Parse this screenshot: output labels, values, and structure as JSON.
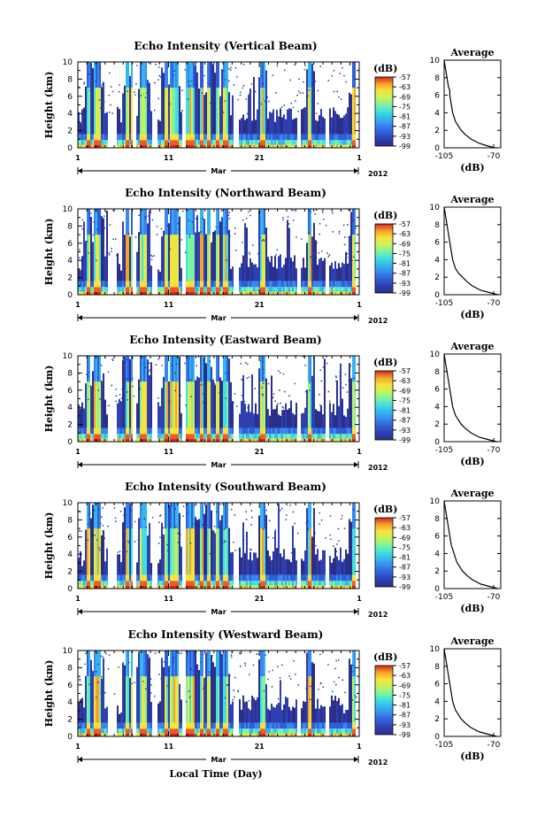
{
  "figure": {
    "xlabel": "Local Time (Day)",
    "month_label": "Mar",
    "year_label": "2012"
  },
  "colors": {
    "colormap": [
      "#2b2f8a",
      "#2e3fb0",
      "#2f5fd8",
      "#3a86f0",
      "#35b5f0",
      "#40e0e0",
      "#7ef2a0",
      "#c9f25a",
      "#f7e33a",
      "#f7a12a",
      "#f05a25",
      "#d7261e"
    ],
    "axis": "#000000"
  },
  "chart_data": [
    {
      "type": "heatmap",
      "title": "Echo Intensity (Vertical Beam)",
      "xlabel": "",
      "ylabel": "Height (km)",
      "xlim": [
        1,
        32
      ],
      "ylim": [
        0,
        10
      ],
      "x_ticks": [
        "1",
        "11",
        "21",
        "1"
      ],
      "y_ticks": [
        "0",
        "2",
        "4",
        "6",
        "8",
        "10"
      ],
      "colorbar": {
        "label": "(dB)",
        "ticks": [
          "-57",
          "-63",
          "-69",
          "-75",
          "-81",
          "-87",
          "-93",
          "-99"
        ],
        "range": [
          -99,
          -57
        ]
      },
      "description_values": {
        "rain_columns_day": [
          2.1,
          2.8,
          3.0,
          3.3,
          6.3,
          6.9,
          8.0,
          8.3,
          10.6,
          11.3,
          11.7,
          13.1,
          13.6,
          14.5,
          15.3,
          16.3,
          17.2,
          21.3,
          26.5,
          31.3
        ]
      },
      "average_profile": {
        "title": "Average",
        "xlabel": "(dB)",
        "x_ticks": [
          "-105",
          "-70"
        ],
        "xlim": [
          -105,
          -65
        ],
        "ylim": [
          0,
          10
        ],
        "height": [
          0,
          0.2,
          0.5,
          1,
          1.5,
          2,
          2.5,
          3,
          3.5,
          4,
          4.5,
          5,
          5.5,
          6,
          6.5,
          7,
          7.5,
          8,
          8.5,
          9,
          9.5,
          10
        ],
        "db": [
          -69,
          -74,
          -80,
          -86,
          -90,
          -93,
          -95,
          -97,
          -98,
          -99,
          -99.5,
          -100,
          -100.5,
          -101,
          -101,
          -102,
          -102.5,
          -103,
          -103.5,
          -104,
          -104.5,
          -105
        ]
      }
    },
    {
      "type": "heatmap",
      "title": "Echo Intensity (Northward Beam)",
      "xlabel": "",
      "ylabel": "Height (km)",
      "xlim": [
        1,
        32
      ],
      "ylim": [
        0,
        10
      ],
      "x_ticks": [
        "1",
        "11",
        "21",
        "1"
      ],
      "y_ticks": [
        "0",
        "2",
        "4",
        "6",
        "8",
        "10"
      ],
      "colorbar": {
        "label": "(dB)",
        "ticks": [
          "-57",
          "-63",
          "-69",
          "-75",
          "-81",
          "-87",
          "-93",
          "-99"
        ],
        "range": [
          -99,
          -57
        ]
      },
      "average_profile": {
        "title": "Average",
        "xlabel": "(dB)",
        "x_ticks": [
          "-105",
          "-70"
        ],
        "xlim": [
          -105,
          -65
        ],
        "ylim": [
          0,
          10
        ],
        "height": [
          0,
          0.2,
          0.5,
          1,
          1.5,
          2,
          2.5,
          3,
          3.5,
          4,
          4.5,
          5,
          5.5,
          6,
          6.5,
          7,
          7.5,
          8,
          8.5,
          9,
          9.5,
          10
        ],
        "db": [
          -67,
          -72,
          -79,
          -85,
          -89,
          -92,
          -95,
          -97,
          -98,
          -99,
          -99.5,
          -100,
          -100.5,
          -101,
          -101.5,
          -102,
          -102.5,
          -103,
          -103.5,
          -104,
          -104.5,
          -105
        ]
      }
    },
    {
      "type": "heatmap",
      "title": "Echo Intensity (Eastward Beam)",
      "xlabel": "",
      "ylabel": "Height (km)",
      "xlim": [
        1,
        32
      ],
      "ylim": [
        0,
        10
      ],
      "x_ticks": [
        "1",
        "11",
        "21",
        "1"
      ],
      "y_ticks": [
        "0",
        "2",
        "4",
        "6",
        "8",
        "10"
      ],
      "colorbar": {
        "label": "(dB)",
        "ticks": [
          "-57",
          "-63",
          "-69",
          "-75",
          "-81",
          "-87",
          "-93",
          "-99"
        ],
        "range": [
          -99,
          -57
        ]
      },
      "average_profile": {
        "title": "Average",
        "xlabel": "(dB)",
        "x_ticks": [
          "-105",
          "-70"
        ],
        "xlim": [
          -105,
          -65
        ],
        "ylim": [
          0,
          10
        ],
        "height": [
          0,
          0.2,
          0.5,
          1,
          1.5,
          2,
          2.5,
          3,
          3.5,
          4,
          4.5,
          5,
          5.5,
          6,
          6.5,
          7,
          7.5,
          8,
          8.5,
          9,
          9.5,
          10
        ],
        "db": [
          -68,
          -73,
          -80,
          -86,
          -90,
          -93,
          -95,
          -97,
          -98,
          -99,
          -99.5,
          -100,
          -100.5,
          -101,
          -101.5,
          -102,
          -102.5,
          -103,
          -103.5,
          -104,
          -104.5,
          -105
        ]
      }
    },
    {
      "type": "heatmap",
      "title": "Echo Intensity (Southward Beam)",
      "xlabel": "",
      "ylabel": "Height (km)",
      "xlim": [
        1,
        32
      ],
      "ylim": [
        0,
        10
      ],
      "x_ticks": [
        "1",
        "11",
        "21",
        "1"
      ],
      "y_ticks": [
        "0",
        "2",
        "4",
        "6",
        "8",
        "10"
      ],
      "colorbar": {
        "label": "(dB)",
        "ticks": [
          "-57",
          "-63",
          "-69",
          "-75",
          "-81",
          "-87",
          "-93",
          "-99"
        ],
        "range": [
          -99,
          -57
        ]
      },
      "average_profile": {
        "title": "Average",
        "xlabel": "(dB)",
        "x_ticks": [
          "-105",
          "-70"
        ],
        "xlim": [
          -105,
          -65
        ],
        "ylim": [
          0,
          10
        ],
        "height": [
          0,
          0.2,
          0.5,
          1,
          1.5,
          2,
          2.5,
          3,
          3.5,
          4,
          4.5,
          5,
          5.5,
          6,
          6.5,
          7,
          7.5,
          8,
          8.5,
          9,
          9.5,
          10
        ],
        "db": [
          -67,
          -72,
          -79,
          -85,
          -89,
          -92,
          -94,
          -96,
          -97,
          -98,
          -99,
          -100,
          -100.5,
          -101,
          -101.5,
          -102,
          -102.5,
          -103,
          -103.5,
          -104,
          -104.5,
          -105
        ]
      }
    },
    {
      "type": "heatmap",
      "title": "Echo Intensity (Westward Beam)",
      "xlabel": "",
      "ylabel": "Height (km)",
      "xlim": [
        1,
        32
      ],
      "ylim": [
        0,
        10
      ],
      "x_ticks": [
        "1",
        "11",
        "21",
        "1"
      ],
      "y_ticks": [
        "0",
        "2",
        "4",
        "6",
        "8",
        "10"
      ],
      "colorbar": {
        "label": "(dB)",
        "ticks": [
          "-57",
          "-63",
          "-69",
          "-75",
          "-81",
          "-87",
          "-93",
          "-99"
        ],
        "range": [
          -99,
          -57
        ]
      },
      "average_profile": {
        "title": "Average",
        "xlabel": "(dB)",
        "x_ticks": [
          "-105",
          "-70"
        ],
        "xlim": [
          -105,
          -65
        ],
        "ylim": [
          0,
          10
        ],
        "height": [
          0,
          0.2,
          0.5,
          1,
          1.5,
          2,
          2.5,
          3,
          3.5,
          4,
          4.5,
          5,
          5.5,
          6,
          6.5,
          7,
          7.5,
          8,
          8.5,
          9,
          9.5,
          10
        ],
        "db": [
          -68,
          -73,
          -80,
          -86,
          -90,
          -93,
          -95,
          -97,
          -98,
          -99,
          -99.5,
          -100,
          -100.5,
          -101,
          -101.5,
          -102,
          -102.5,
          -103,
          -103.5,
          -104,
          -104.5,
          -105
        ]
      }
    }
  ]
}
